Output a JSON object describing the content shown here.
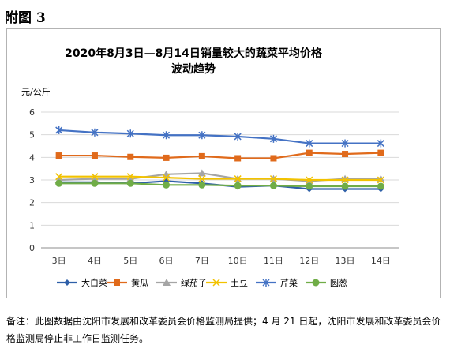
{
  "page": {
    "heading": "附图 3",
    "note": "备注：此图数据由沈阳市发展和改革委员会价格监测局提供；4 月 21 日起，沈阳市发展和改革委员会价格监测局停止非工作日监测任务。"
  },
  "chart_data": {
    "type": "line",
    "title_line1": "2020年8月3日—8月14日销量较大的蔬菜平均价格",
    "title_line2": "波动趋势",
    "ylabel": "元/公斤",
    "xlabel": "",
    "categories": [
      "3日",
      "4日",
      "5日",
      "6日",
      "7日",
      "10日",
      "11日",
      "12日",
      "13日",
      "14日"
    ],
    "ylim": [
      0,
      6
    ],
    "yticks": [
      0,
      1,
      2,
      3,
      4,
      5,
      6
    ],
    "grid": true,
    "legend_position": "bottom",
    "series": [
      {
        "name": "大白菜",
        "color": "#2E5FA8",
        "marker": "diamond",
        "values": [
          2.9,
          2.9,
          2.85,
          2.95,
          2.85,
          2.7,
          2.75,
          2.6,
          2.6,
          2.6
        ]
      },
      {
        "name": "黄瓜",
        "color": "#E06A1B",
        "marker": "square",
        "values": [
          4.08,
          4.08,
          4.02,
          3.98,
          4.05,
          3.96,
          3.96,
          4.2,
          4.15,
          4.2
        ]
      },
      {
        "name": "绿茄子",
        "color": "#A5A5A5",
        "marker": "triangle",
        "values": [
          3.0,
          3.05,
          3.05,
          3.25,
          3.3,
          3.05,
          3.05,
          2.95,
          3.05,
          3.05
        ]
      },
      {
        "name": "土豆",
        "color": "#F2C200",
        "marker": "x",
        "values": [
          3.15,
          3.15,
          3.15,
          3.1,
          3.05,
          3.05,
          3.05,
          3.0,
          3.0,
          3.0
        ]
      },
      {
        "name": "芹菜",
        "color": "#4472C4",
        "marker": "star",
        "values": [
          5.2,
          5.1,
          5.05,
          4.98,
          4.98,
          4.92,
          4.82,
          4.62,
          4.62,
          4.62
        ]
      },
      {
        "name": "圆葱",
        "color": "#70AD47",
        "marker": "circle",
        "values": [
          2.85,
          2.85,
          2.85,
          2.78,
          2.78,
          2.75,
          2.75,
          2.72,
          2.72,
          2.72
        ]
      }
    ]
  }
}
